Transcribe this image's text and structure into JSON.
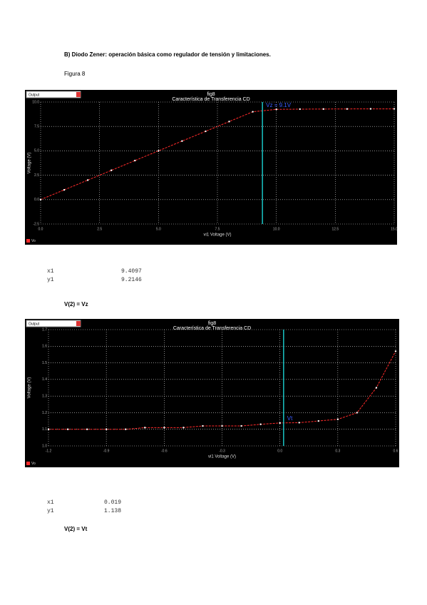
{
  "document": {
    "heading": "B) Diodo Zener: operación básica como regulador de tensión y limitaciones.",
    "figure_label": "Figura 8",
    "readouts": [
      {
        "x_label": "x1",
        "x_value": 9.4097,
        "y_label": "y1",
        "y_value": 9.2146
      },
      {
        "x_label": "x1",
        "x_value": 0.019,
        "y_label": "y1",
        "y_value": 1.138
      }
    ],
    "captions": [
      "V(2) = Vz",
      "V(2) = Vt"
    ]
  },
  "chart_data": [
    {
      "type": "line",
      "title": "fig8",
      "subtitle": "Característica de Transferencia CD",
      "x_label": "vi1 Voltage (V)",
      "y_label": "Voltage (V)",
      "selector": "Output",
      "annotation": "Vz = 9.1V",
      "x": [
        0,
        1,
        2,
        3,
        4,
        5,
        6,
        7,
        8,
        9,
        10,
        11,
        12,
        13,
        14,
        15
      ],
      "series": [
        {
          "name": "Vo",
          "color": "#ff2a2a",
          "values": [
            0,
            1,
            2,
            3,
            4,
            5,
            6,
            7,
            8,
            9,
            9.25,
            9.27,
            9.28,
            9.29,
            9.3,
            9.3
          ]
        }
      ],
      "xlim": [
        0,
        15
      ],
      "ylim": [
        -2.5,
        10
      ],
      "xticks": [
        {
          "value": 0,
          "label": "0.0"
        },
        2.5,
        {
          "value": 5,
          "label": "5.0"
        },
        7.5,
        {
          "value": 10,
          "label": "10.0"
        },
        12.5,
        {
          "value": 15,
          "label": "15.0"
        }
      ],
      "yticks": [
        -2.5,
        {
          "value": 0,
          "label": "0.0"
        },
        2.5,
        {
          "value": 5,
          "label": "5.0"
        },
        7.5,
        {
          "value": 10,
          "label": "10.0"
        }
      ],
      "grid": true
    },
    {
      "type": "line",
      "title": "fig8",
      "subtitle": "Característica de Transferencia CD",
      "x_label": "vi1 Voltage (V)",
      "y_label": "Voltage (V)",
      "selector": "Output",
      "annotation": "Vt",
      "x": [
        -1.2,
        -1.1,
        -1.0,
        -0.9,
        -0.8,
        -0.7,
        -0.6,
        -0.5,
        -0.4,
        -0.3,
        -0.2,
        -0.1,
        0,
        0.1,
        0.2,
        0.3,
        0.4,
        0.5,
        0.6
      ],
      "series": [
        {
          "name": "Vo",
          "color": "#ff2a2a",
          "values": [
            1.1,
            1.1,
            1.1,
            1.1,
            1.1,
            1.11,
            1.11,
            1.11,
            1.12,
            1.12,
            1.12,
            1.13,
            1.138,
            1.14,
            1.15,
            1.16,
            1.2,
            1.35,
            1.57
          ]
        }
      ],
      "xlim": [
        -1.2,
        0.6
      ],
      "ylim": [
        1.0,
        1.7
      ],
      "xticks": [
        -1.2,
        -0.9,
        -0.6,
        -0.3,
        {
          "value": 0,
          "label": "0.0"
        },
        0.3,
        0.6
      ],
      "yticks": [
        {
          "value": 1.0,
          "label": "1.0"
        },
        1.1,
        1.2,
        1.3,
        1.4,
        1.5,
        1.6,
        1.7
      ],
      "grid": true
    }
  ]
}
